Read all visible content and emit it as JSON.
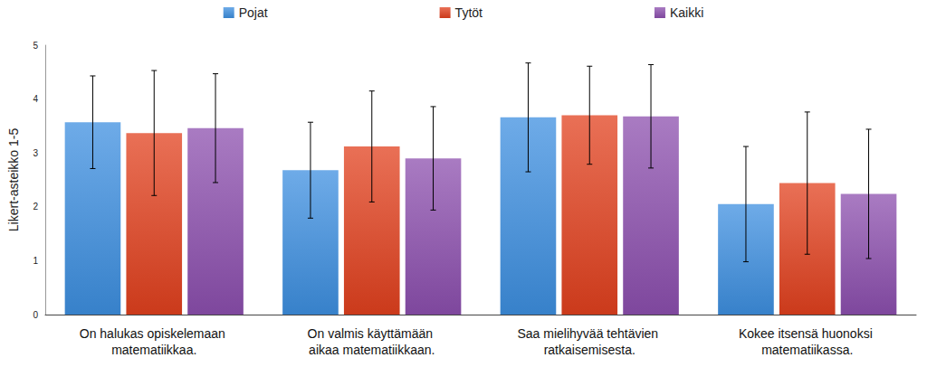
{
  "chart_data": {
    "type": "bar",
    "y_label": "Likert-asteikko 1-5",
    "categories": [
      "On halukas opiskelemaan matematiikkaa.",
      "On valmis käyttämään aikaa matematiikkaan.",
      "Saa mielihyvää tehtävien ratkaisemisesta.",
      "Kokee itsensä huonoksi matematiikassa."
    ],
    "series": [
      {
        "name": "Pojat",
        "color": "#3d8fe0",
        "values": [
          3.57,
          2.68,
          3.66,
          2.05
        ],
        "errors": [
          0.86,
          0.89,
          1.01,
          1.07
        ]
      },
      {
        "name": "Tytöt",
        "color": "#e2401e",
        "values": [
          3.37,
          3.12,
          3.7,
          2.44
        ],
        "errors": [
          1.16,
          1.03,
          0.91,
          1.32
        ]
      },
      {
        "name": "Kaikki",
        "color": "#8c4fae",
        "values": [
          3.46,
          2.9,
          3.68,
          2.24
        ],
        "errors": [
          1.01,
          0.96,
          0.96,
          1.2
        ]
      }
    ],
    "ylim": [
      0,
      5
    ],
    "yticks": [
      0,
      1,
      2,
      3,
      4,
      5
    ],
    "grid": false,
    "legend": "top"
  }
}
